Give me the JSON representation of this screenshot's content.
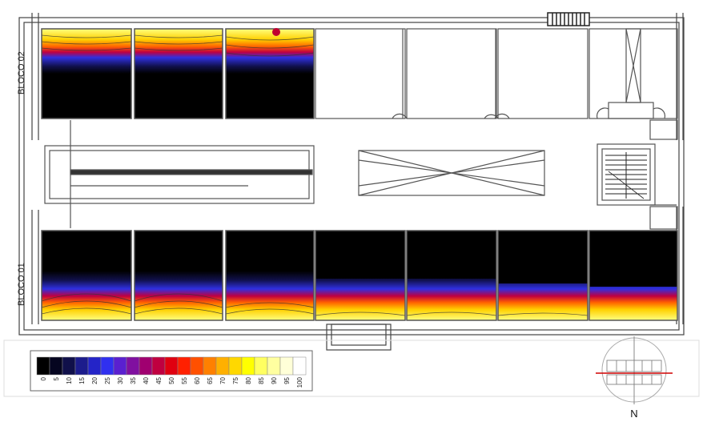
{
  "blocks": {
    "top_label": "BLOCO 02",
    "bottom_label": "BLOCO 01"
  },
  "legend": {
    "ticks": [
      "0",
      "5",
      "10",
      "15",
      "20",
      "25",
      "30",
      "35",
      "40",
      "45",
      "50",
      "55",
      "60",
      "65",
      "70",
      "75",
      "80",
      "85",
      "90",
      "95",
      "100"
    ],
    "colors": [
      "#000000",
      "#050520",
      "#10104a",
      "#1c1c8c",
      "#2424c8",
      "#3030f0",
      "#5a20d0",
      "#8010a0",
      "#a00070",
      "#c00040",
      "#e00010",
      "#ff2000",
      "#ff5000",
      "#ff8000",
      "#ffb000",
      "#ffd800",
      "#ffff00",
      "#ffff60",
      "#ffffa0",
      "#ffffd8",
      "#ffffff"
    ]
  },
  "compass": {
    "north_label": "N"
  },
  "rooms": {
    "top": [
      {
        "peak": 1.0,
        "depth": 0.35
      },
      {
        "peak": 1.0,
        "depth": 0.33
      },
      {
        "peak": 1.0,
        "depth": 0.42
      }
    ],
    "bottom": [
      {
        "peak": 1.0,
        "depth": 0.55
      },
      {
        "peak": 1.0,
        "depth": 0.52
      },
      {
        "peak": 0.95,
        "depth": 0.42
      },
      {
        "peak": 0.85,
        "depth": 0.26
      },
      {
        "peak": 0.85,
        "depth": 0.28
      },
      {
        "peak": 0.82,
        "depth": 0.26
      },
      {
        "peak": 0.75,
        "depth": 0.2
      }
    ]
  }
}
